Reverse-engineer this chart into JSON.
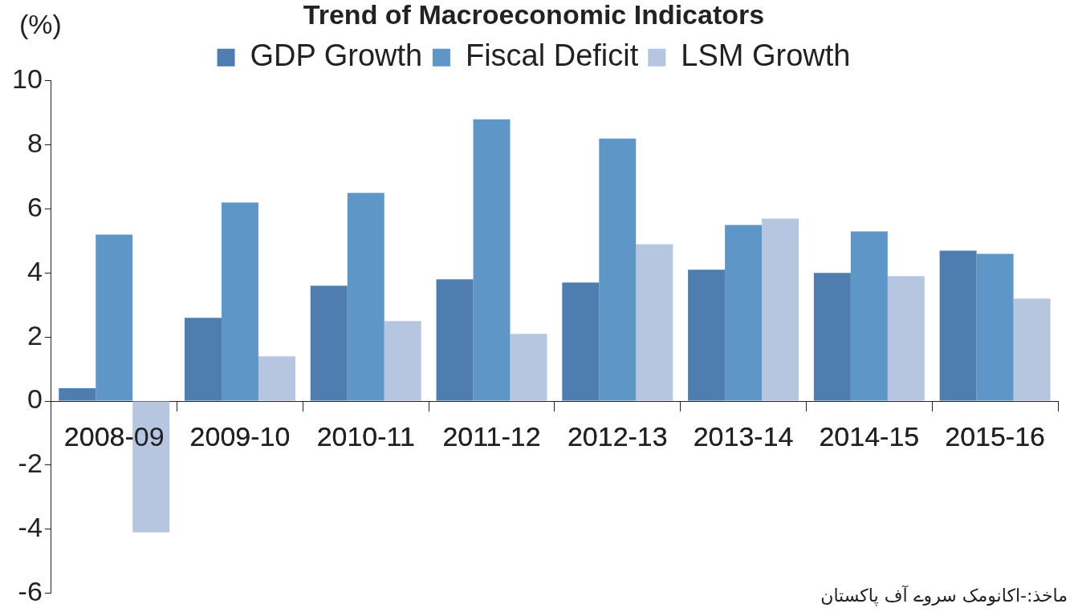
{
  "chart_data": {
    "type": "bar",
    "title": "Trend of Macroeconomic Indicators",
    "ylabel": "(%)",
    "categories": [
      "2008-09",
      "2009-10",
      "2010-11",
      "2011-12",
      "2012-13",
      "2013-14",
      "2014-15",
      "2015-16"
    ],
    "series": [
      {
        "name": "GDP Growth",
        "color": "#4f7db0",
        "values": [
          0.4,
          2.6,
          3.6,
          3.8,
          3.7,
          4.1,
          4.0,
          4.7
        ]
      },
      {
        "name": "Fiscal Deficit",
        "color": "#5f96c8",
        "values": [
          5.2,
          6.2,
          6.5,
          8.8,
          8.2,
          5.5,
          5.3,
          4.6
        ]
      },
      {
        "name": "LSM Growth",
        "color": "#b7c6e0",
        "values": [
          -4.1,
          1.4,
          2.5,
          2.1,
          4.9,
          5.7,
          3.9,
          3.2
        ]
      }
    ],
    "ylim": [
      -6,
      10
    ],
    "yticks": [
      -6,
      -4,
      -2,
      0,
      2,
      4,
      6,
      8,
      10
    ],
    "grid": false,
    "legend": "top",
    "annotations": [
      "ماخذ:-اکانومک سروے آف پاکستان"
    ]
  }
}
